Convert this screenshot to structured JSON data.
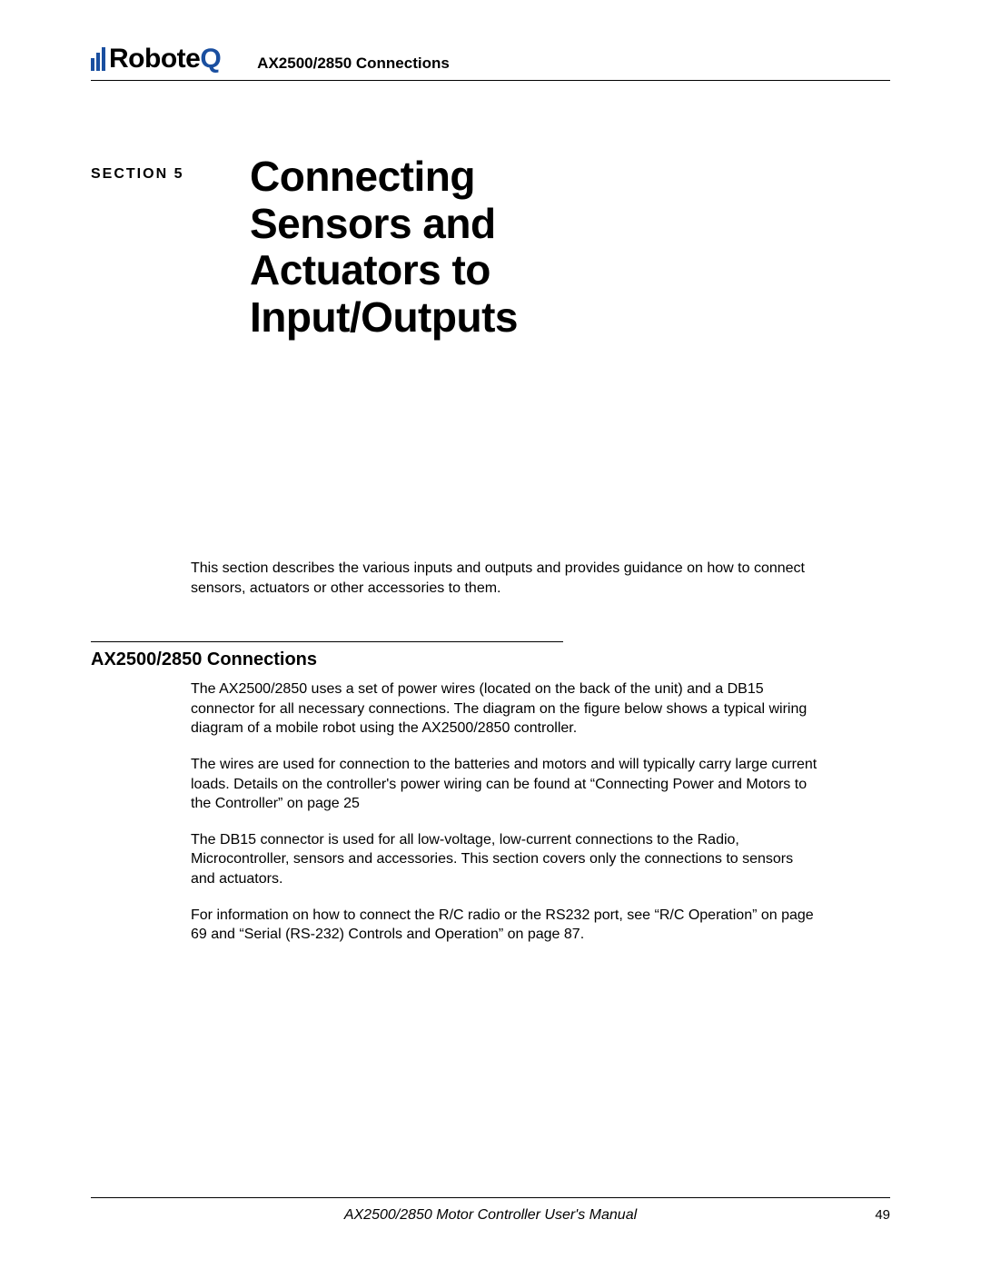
{
  "header": {
    "logo_main": "Robote",
    "logo_accent": "Q",
    "running_title": "AX2500/2850 Connections"
  },
  "section": {
    "label": "SECTION 5",
    "title_line1": "Connecting",
    "title_line2": "Sensors and",
    "title_line3": "Actuators to",
    "title_line4": "Input/Outputs"
  },
  "intro": "This section describes the various inputs and outputs and provides guidance on how to connect sensors, actuators or other accessories to them.",
  "subsection": {
    "title": "AX2500/2850 Connections",
    "p1": "The AX2500/2850 uses a set of power wires (located on the back of the unit) and a DB15 connector for all necessary connections. The diagram on the figure below shows a typical wiring diagram of a mobile robot using the AX2500/2850 controller.",
    "p2": "The wires are used for connection to the batteries and motors and will typically carry large current loads. Details on the controller's power wiring can be found at “Connecting Power and Motors to the Controller” on page 25",
    "p3": "The DB15 connector is used for all low-voltage, low-current connections to the Radio, Microcontroller, sensors and accessories. This section covers only the connections to sensors and actuators.",
    "p4": "For information on how to connect the R/C radio or the RS232 port, see “R/C Operation” on page 69 and “Serial (RS-232) Controls and Operation” on page 87."
  },
  "footer": {
    "manual_title": "AX2500/2850 Motor Controller User's Manual",
    "page_number": "49"
  },
  "colors": {
    "accent": "#1a4fa0",
    "text": "#000000",
    "background": "#ffffff"
  }
}
